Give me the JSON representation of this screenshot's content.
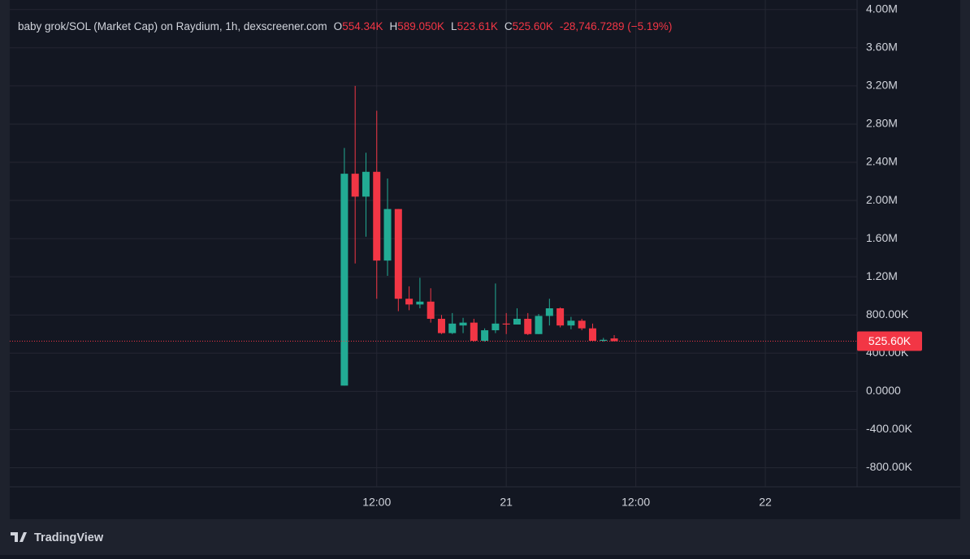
{
  "chart_data": {
    "type": "candlestick",
    "title": "baby grok/SOL (Market Cap) on Raydium, 1h, dexscreener.com",
    "ohlc_header": {
      "open_label": "O",
      "open": "554.34K",
      "high_label": "H",
      "high": "589.050K",
      "low_label": "L",
      "low": "523.61K",
      "close_label": "C",
      "close": "525.60K",
      "change": "-28,746.7289 (−5.19%)"
    },
    "brand": "TradingView",
    "up_color": "#22ab94",
    "down_color": "#f23645",
    "grid": true,
    "x": [
      9,
      10,
      11,
      12,
      13,
      14,
      15,
      16,
      17,
      18,
      19,
      20,
      21,
      22,
      23,
      24,
      25,
      26,
      27,
      28,
      29,
      30,
      31,
      32,
      33,
      34
    ],
    "open": [
      60000,
      2280000,
      2040000,
      2300000,
      1370000,
      1910000,
      970000,
      910000,
      940000,
      760000,
      610000,
      690000,
      720000,
      530000,
      640000,
      710000,
      700000,
      760000,
      600000,
      790000,
      870000,
      690000,
      740000,
      660000,
      530000,
      554340
    ],
    "high": [
      2550000,
      3200000,
      2500000,
      2940000,
      2230000,
      1910000,
      1100000,
      1190000,
      1080000,
      800000,
      820000,
      770000,
      760000,
      660000,
      1130000,
      820000,
      870000,
      820000,
      810000,
      970000,
      880000,
      780000,
      760000,
      710000,
      560000,
      589050
    ],
    "low": [
      60000,
      1340000,
      1620000,
      970000,
      1210000,
      840000,
      850000,
      870000,
      720000,
      600000,
      600000,
      610000,
      520000,
      520000,
      610000,
      600000,
      700000,
      590000,
      600000,
      690000,
      670000,
      650000,
      640000,
      520000,
      520000,
      523610
    ],
    "close": [
      2280000,
      2040000,
      2300000,
      1370000,
      1910000,
      970000,
      910000,
      940000,
      760000,
      610000,
      710000,
      720000,
      530000,
      640000,
      710000,
      700000,
      760000,
      600000,
      790000,
      870000,
      690000,
      740000,
      660000,
      530000,
      540000,
      525600
    ],
    "last_price": {
      "value": 525600,
      "label": "525.60K"
    },
    "xlim": [
      -22,
      56.5
    ],
    "xticks": [
      {
        "value": 12,
        "label": "12:00"
      },
      {
        "value": 24,
        "label": "21"
      },
      {
        "value": 36,
        "label": "12:00"
      },
      {
        "value": 48,
        "label": "22"
      }
    ],
    "ylim": [
      -1000000,
      4100000
    ],
    "yticks": [
      {
        "value": -800000,
        "label": "-800.00K"
      },
      {
        "value": -400000,
        "label": "-400.00K"
      },
      {
        "value": 0,
        "label": "0.0000"
      },
      {
        "value": 400000,
        "label": "400.00K"
      },
      {
        "value": 800000,
        "label": "800.00K"
      },
      {
        "value": 1200000,
        "label": "1.20M"
      },
      {
        "value": 1600000,
        "label": "1.60M"
      },
      {
        "value": 2000000,
        "label": "2.00M"
      },
      {
        "value": 2400000,
        "label": "2.40M"
      },
      {
        "value": 2800000,
        "label": "2.80M"
      },
      {
        "value": 3200000,
        "label": "3.20M"
      },
      {
        "value": 3600000,
        "label": "3.60M"
      },
      {
        "value": 4000000,
        "label": "4.00M"
      }
    ]
  }
}
